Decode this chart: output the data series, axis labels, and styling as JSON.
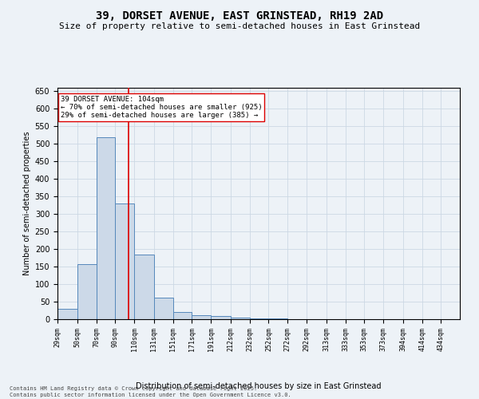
{
  "title_line1": "39, DORSET AVENUE, EAST GRINSTEAD, RH19 2AD",
  "title_line2": "Size of property relative to semi-detached houses in East Grinstead",
  "xlabel": "Distribution of semi-detached houses by size in East Grinstead",
  "ylabel": "Number of semi-detached properties",
  "footnote": "Contains HM Land Registry data © Crown copyright and database right 2025.\nContains public sector information licensed under the Open Government Licence v3.0.",
  "bar_left_edges": [
    29,
    50,
    70,
    90,
    110,
    131,
    151,
    171,
    191,
    212,
    232,
    252,
    272,
    292,
    313,
    333,
    353,
    373,
    394,
    414
  ],
  "bar_widths": [
    21,
    20,
    20,
    20,
    21,
    20,
    20,
    20,
    21,
    20,
    20,
    20,
    20,
    21,
    20,
    20,
    20,
    21,
    20,
    20
  ],
  "bar_heights": [
    30,
    158,
    520,
    330,
    185,
    62,
    20,
    12,
    8,
    5,
    3,
    2,
    1,
    1,
    1,
    0,
    0,
    0,
    0,
    1
  ],
  "bar_facecolor": "#ccd9e8",
  "bar_edgecolor": "#5588bb",
  "property_size": 104,
  "red_line_color": "#dd0000",
  "annotation_text": "39 DORSET AVENUE: 104sqm\n← 70% of semi-detached houses are smaller (925)\n29% of semi-detached houses are larger (385) →",
  "annotation_box_edgecolor": "#dd0000",
  "annotation_box_facecolor": "#ffffff",
  "ylim": [
    0,
    660
  ],
  "yticks": [
    0,
    50,
    100,
    150,
    200,
    250,
    300,
    350,
    400,
    450,
    500,
    550,
    600,
    650
  ],
  "xtick_labels": [
    "29sqm",
    "50sqm",
    "70sqm",
    "90sqm",
    "110sqm",
    "131sqm",
    "151sqm",
    "171sqm",
    "191sqm",
    "212sqm",
    "232sqm",
    "252sqm",
    "272sqm",
    "292sqm",
    "313sqm",
    "333sqm",
    "353sqm",
    "373sqm",
    "394sqm",
    "414sqm",
    "434sqm"
  ],
  "xtick_positions": [
    29,
    50,
    70,
    90,
    110,
    131,
    151,
    171,
    191,
    212,
    232,
    252,
    272,
    292,
    313,
    333,
    353,
    373,
    394,
    414,
    434
  ],
  "grid_color": "#ccd8e4",
  "bg_color": "#edf2f7",
  "title_fontsize": 10,
  "subtitle_fontsize": 8,
  "ylabel_fontsize": 7,
  "xlabel_fontsize": 7,
  "ytick_fontsize": 7,
  "xtick_fontsize": 6,
  "footnote_fontsize": 5,
  "annot_fontsize": 6.5
}
